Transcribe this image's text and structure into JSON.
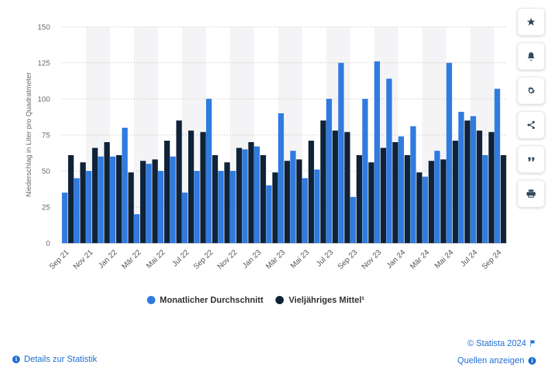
{
  "chart_data": {
    "type": "bar",
    "ylabel": "Niederschlag in Liter pro Quadratmeter",
    "ylim": [
      0,
      150
    ],
    "yticks": [
      0,
      25,
      50,
      75,
      100,
      125,
      150
    ],
    "categories": [
      "Sep 21",
      "Okt 21",
      "Nov 21",
      "Dez 21",
      "Jan 22",
      "Feb 22",
      "Mär 22",
      "Apr 22",
      "Mai 22",
      "Jun 22",
      "Jul 22",
      "Aug 22",
      "Sep 22",
      "Okt 22",
      "Nov 22",
      "Dez 22",
      "Jan 23",
      "Feb 23",
      "Mär 23",
      "Apr 23",
      "Mai 23",
      "Jun 23",
      "Jul 23",
      "Aug 23",
      "Sep 23",
      "Okt 23",
      "Nov 23",
      "Dez 23",
      "Jan 24",
      "Feb 24",
      "Mär 24",
      "Apr 24",
      "Mai 24",
      "Jun 24",
      "Jul 24",
      "Aug 24",
      "Sep 24"
    ],
    "tick_labels": [
      "Sep 21",
      "",
      "Nov 21",
      "",
      "Jan 22",
      "",
      "Mär 22",
      "",
      "Mai 22",
      "",
      "Jul 22",
      "",
      "Sep 22",
      "",
      "Nov 22",
      "",
      "Jan 23",
      "",
      "Mär 23",
      "",
      "Mai 23",
      "",
      "Jul 23",
      "",
      "Sep 23",
      "",
      "Nov 23",
      "",
      "Jan 24",
      "",
      "Mär 24",
      "",
      "Mai 24",
      "",
      "Jul 24",
      "",
      "Sep 24"
    ],
    "series": [
      {
        "name": "Monatlicher Durchschnitt",
        "color": "#2f7be0",
        "values": [
          35,
          45,
          50,
          60,
          60,
          80,
          20,
          55,
          50,
          60,
          35,
          50,
          100,
          50,
          50,
          65,
          67,
          40,
          90,
          64,
          45,
          51,
          100,
          125,
          32,
          100,
          126,
          114,
          74,
          81,
          46,
          64,
          125,
          91,
          88,
          61,
          107
        ]
      },
      {
        "name": "Vieljähriges Mittel¹",
        "color": "#0f2238",
        "values": [
          61,
          56,
          66,
          70,
          61,
          49,
          57,
          58,
          71,
          85,
          78,
          77,
          61,
          56,
          66,
          70,
          61,
          49,
          57,
          58,
          71,
          85,
          78,
          77,
          61,
          56,
          66,
          70,
          61,
          49,
          57,
          58,
          71,
          85,
          78,
          77,
          61
        ]
      }
    ],
    "grid": true,
    "legend_position": "bottom"
  },
  "toolbar": {
    "icons": [
      "star-icon",
      "bell-icon",
      "gear-icon",
      "share-icon",
      "quote-icon",
      "print-icon"
    ]
  },
  "footer": {
    "credit": "© Statista 2024",
    "details": "Details zur Statistik",
    "sources": "Quellen anzeigen"
  }
}
